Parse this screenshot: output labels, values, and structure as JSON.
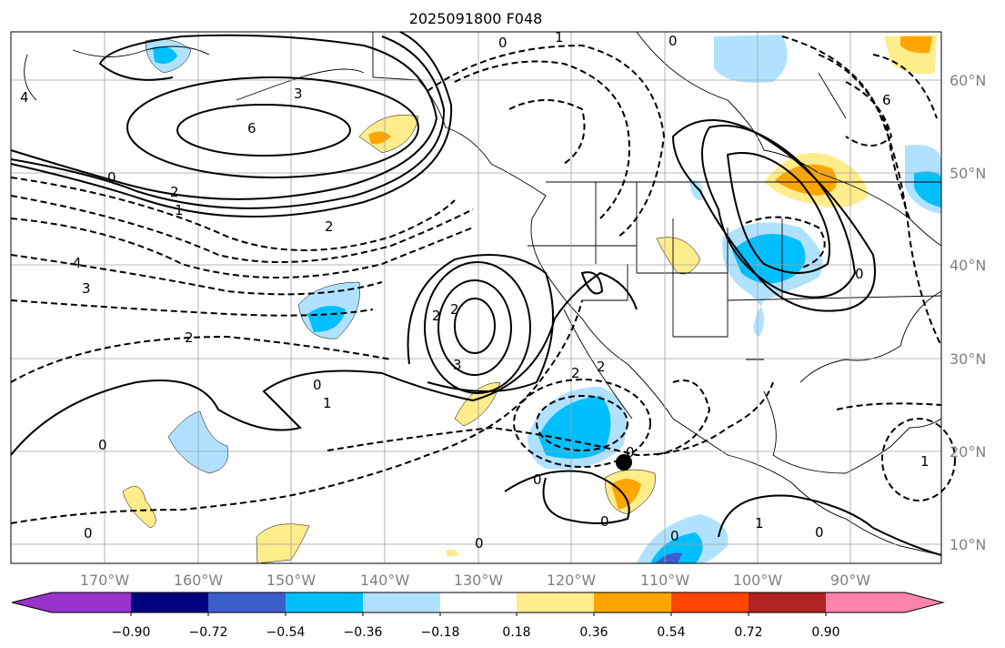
{
  "title": "2025091800 F048",
  "lon_labels": [
    "170°W",
    "160°W",
    "150°W",
    "140°W",
    "130°W",
    "120°W",
    "110°W",
    "100°W",
    "90°W"
  ],
  "lat_labels": [
    "60°N",
    "50°N",
    "40°N",
    "30°N",
    "20°N",
    "10°N"
  ],
  "colorbar": {
    "ticks": [
      "−0.90",
      "−0.72",
      "−0.54",
      "−0.36",
      "−0.18",
      "0.18",
      "0.36",
      "0.54",
      "0.72",
      "0.90"
    ],
    "colors": [
      "#9932CC",
      "#000080",
      "#3A5FCD",
      "#00BFFF",
      "#B0E2FF",
      "#FFFFFF",
      "#FFEC8B",
      "#FFA500",
      "#FF4500",
      "#B22222",
      "#FF82AB"
    ]
  },
  "contour_labels": [
    "0",
    "1",
    "0",
    "3",
    "6",
    "0",
    "2",
    "1",
    "2",
    "4",
    "3",
    "2",
    "0",
    "0",
    "3",
    "2",
    "0",
    "2",
    "2",
    "0",
    "0",
    "0",
    "0",
    "0",
    "1",
    "0",
    "0",
    "6",
    "1",
    "1",
    "4",
    "2"
  ]
}
